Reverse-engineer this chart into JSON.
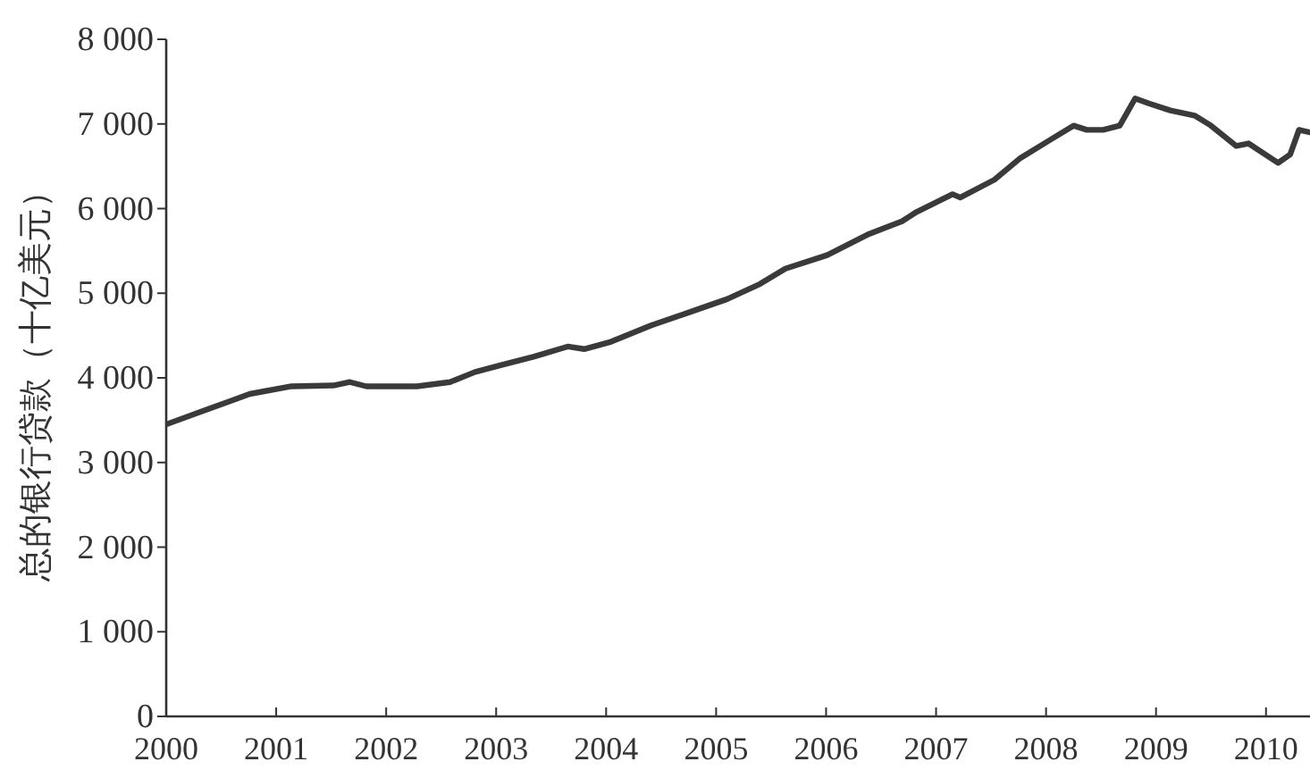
{
  "chart_data": {
    "type": "line",
    "ylabel": "总的银行贷款（十亿美元）",
    "x": [
      2000.0,
      2000.38,
      2000.76,
      2001.14,
      2001.52,
      2001.67,
      2001.82,
      2002.28,
      2002.58,
      2002.81,
      2003.04,
      2003.34,
      2003.65,
      2003.8,
      2004.03,
      2004.41,
      2004.79,
      2005.1,
      2005.4,
      2005.63,
      2006.01,
      2006.39,
      2006.69,
      2006.81,
      2007.15,
      2007.22,
      2007.53,
      2007.76,
      2008.06,
      2008.25,
      2008.37,
      2008.52,
      2008.67,
      2008.81,
      2008.94,
      2009.13,
      2009.35,
      2009.5,
      2009.73,
      2009.84,
      2010.11,
      2010.22,
      2010.3,
      2010.4
    ],
    "series": [
      {
        "color": "#3a3a3a",
        "values": [
          3450,
          3630,
          3810,
          3900,
          3910,
          3950,
          3900,
          3900,
          3950,
          4070,
          4150,
          4250,
          4370,
          4340,
          4420,
          4620,
          4790,
          4930,
          5110,
          5290,
          5450,
          5700,
          5850,
          5950,
          6170,
          6130,
          6340,
          6590,
          6830,
          6980,
          6930,
          6930,
          6980,
          7300,
          7240,
          7160,
          7100,
          6980,
          6740,
          6770,
          6540,
          6640,
          6930,
          6900
        ]
      }
    ],
    "xlim": [
      2000,
      2010.4
    ],
    "ylim": [
      0,
      8000
    ],
    "xticks": [
      2000,
      2001,
      2002,
      2003,
      2004,
      2005,
      2006,
      2007,
      2008,
      2009,
      2010
    ],
    "yticks": [
      0,
      {
        "value": 1000,
        "label": "1 000"
      },
      {
        "value": 2000,
        "label": "2 000"
      },
      {
        "value": 3000,
        "label": "3 000"
      },
      {
        "value": 4000,
        "label": "4 000"
      },
      {
        "value": 5000,
        "label": "5 000"
      },
      {
        "value": 6000,
        "label": "6 000"
      },
      {
        "value": 7000,
        "label": "7 000"
      },
      {
        "value": 8000,
        "label": "8 000"
      }
    ],
    "grid": false,
    "marker": "none",
    "line_style": "solid"
  }
}
